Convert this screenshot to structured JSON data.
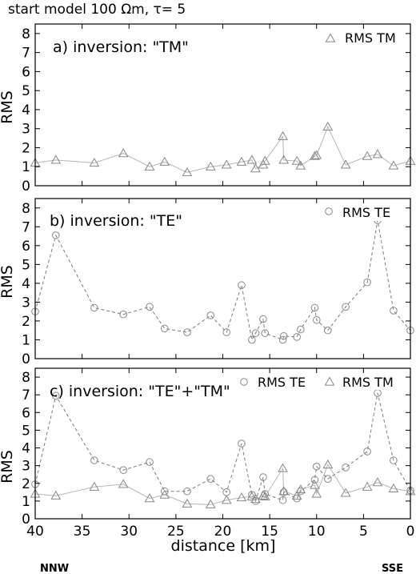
{
  "header": {
    "title": "start model  100 Ωm,  τ= 5"
  },
  "x_axis": {
    "label": "distance [km]",
    "ticks": [
      40,
      35,
      30,
      25,
      20,
      15,
      10,
      5,
      0
    ],
    "left_end": "NNW",
    "right_end": "SSE"
  },
  "chart_data": [
    {
      "type": "line",
      "title": "a) inversion: \"TM\"",
      "ylabel": "RMS",
      "xlim": [
        40,
        0
      ],
      "ylim": [
        0,
        8.5
      ],
      "yticks": [
        0,
        1,
        2,
        3,
        4,
        5,
        6,
        7,
        8
      ],
      "legend_placement": "top-right",
      "series": [
        {
          "name": "RMS TM",
          "marker": "triangle",
          "style": "solid",
          "x": [
            40,
            37.8,
            33.7,
            30.6,
            27.8,
            26.2,
            23.8,
            21.3,
            19.6,
            18,
            16.9,
            16.5,
            15.7,
            15.5,
            13.6,
            13.5,
            12.1,
            11.7,
            10.2,
            10,
            8.8,
            6.9,
            4.6,
            3.5,
            1.8,
            0
          ],
          "y": [
            1.2,
            1.35,
            1.2,
            1.7,
            1.0,
            1.25,
            0.7,
            1.0,
            1.1,
            1.25,
            1.35,
            0.9,
            1.1,
            1.3,
            2.6,
            1.35,
            1.3,
            1.05,
            1.55,
            1.6,
            3.1,
            1.1,
            1.55,
            1.65,
            1.05,
            1.3
          ]
        }
      ]
    },
    {
      "type": "line",
      "title": "b) inversion: \"TE\"",
      "ylabel": "RMS",
      "xlim": [
        40,
        0
      ],
      "ylim": [
        0,
        8.5
      ],
      "yticks": [
        0,
        1,
        2,
        3,
        4,
        5,
        6,
        7,
        8
      ],
      "legend_placement": "top-right",
      "series": [
        {
          "name": "RMS TE",
          "marker": "circle",
          "style": "dashed",
          "x": [
            40,
            37.8,
            33.7,
            30.6,
            27.8,
            26.2,
            23.8,
            21.3,
            19.6,
            18,
            16.9,
            16.5,
            15.7,
            15.5,
            13.6,
            13.5,
            12.1,
            11.7,
            10.2,
            10,
            8.8,
            6.9,
            4.6,
            3.5,
            1.8,
            0
          ],
          "y": [
            2.5,
            6.55,
            2.7,
            2.35,
            2.75,
            1.6,
            1.4,
            2.3,
            1.4,
            3.9,
            1.0,
            1.35,
            2.1,
            1.35,
            1.0,
            1.2,
            1.15,
            1.55,
            2.7,
            2.05,
            1.5,
            2.75,
            4.05,
            7.35,
            2.55,
            1.5
          ]
        }
      ]
    },
    {
      "type": "line",
      "title": "c) inversion: \"TE\"+\"TM\"",
      "ylabel": "RMS",
      "xlim": [
        40,
        0
      ],
      "ylim": [
        0,
        8.5
      ],
      "yticks": [
        0,
        1,
        2,
        3,
        4,
        5,
        6,
        7,
        8
      ],
      "legend_placement": "top-right",
      "series": [
        {
          "name": "RMS TE",
          "marker": "circle",
          "style": "dashed",
          "x": [
            40,
            37.8,
            33.7,
            30.6,
            27.8,
            26.2,
            23.8,
            21.3,
            19.6,
            18,
            16.9,
            16.5,
            15.7,
            15.5,
            13.6,
            13.5,
            12.1,
            11.7,
            10.2,
            10,
            8.8,
            6.9,
            4.6,
            3.5,
            1.8,
            0
          ],
          "y": [
            1.95,
            6.95,
            3.3,
            2.75,
            3.2,
            1.55,
            1.55,
            2.25,
            1.5,
            4.25,
            1.35,
            1.0,
            2.35,
            1.4,
            1.05,
            1.5,
            1.15,
            1.55,
            2.2,
            2.95,
            2.25,
            2.9,
            3.8,
            7.1,
            3.3,
            1.6
          ]
        },
        {
          "name": "RMS TM",
          "marker": "triangle",
          "style": "solid",
          "x": [
            40,
            37.8,
            33.7,
            30.6,
            27.8,
            26.2,
            23.8,
            21.3,
            19.6,
            18,
            16.9,
            16.5,
            15.7,
            15.5,
            13.6,
            13.5,
            12.1,
            11.7,
            10.2,
            10,
            8.8,
            6.9,
            4.6,
            3.5,
            1.8,
            0
          ],
          "y": [
            1.4,
            1.3,
            1.8,
            1.95,
            1.15,
            1.35,
            0.85,
            0.8,
            1.05,
            1.2,
            1.25,
            1.1,
            1.3,
            1.25,
            2.85,
            1.55,
            1.3,
            1.65,
            1.9,
            1.4,
            3.05,
            1.45,
            1.8,
            2.05,
            1.7,
            1.55
          ]
        }
      ]
    }
  ]
}
